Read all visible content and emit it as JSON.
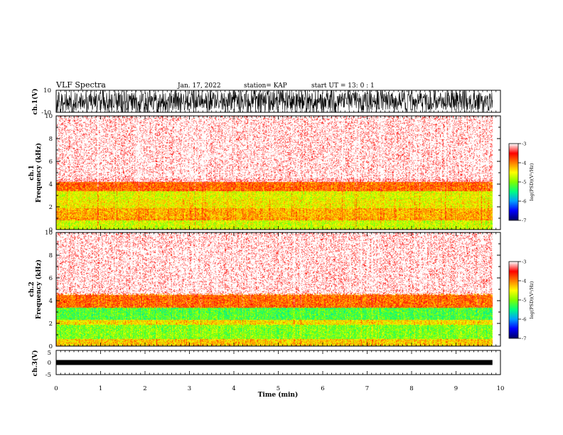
{
  "header": {
    "title": "VLF Spectra",
    "date": "Jan. 17, 2022",
    "station": "station= KAP",
    "start": "start UT =  13: 0 : 1"
  },
  "chart_data": [
    {
      "type": "line",
      "name": "waveform-ch1",
      "ylabel": "ch.1(V)",
      "ylim": [
        -10,
        10
      ],
      "yticks": [
        "10",
        "-10"
      ],
      "xlim": [
        0,
        10
      ],
      "description_of_signal": "dense noise"
    },
    {
      "type": "heatmap",
      "name": "spectrogram-ch1",
      "ylabel": "ch.1\nFrequency (kHz)",
      "ylabel_line1": "ch.1",
      "ylabel_line2": "Frequency (kHz)",
      "ylim": [
        0,
        10
      ],
      "yticks": [
        "0",
        "2",
        "4",
        "6",
        "8",
        "10"
      ],
      "xlim": [
        0,
        10
      ],
      "data_end_min": 9.82,
      "colorbar": {
        "label": "log(PSD)(V²/Hz)",
        "ticks": [
          "-3",
          "-4",
          "-5",
          "-6",
          "-7"
        ],
        "range": [
          -7,
          -3
        ]
      },
      "bands": [
        {
          "f_lo": 0,
          "f_hi": 0.8,
          "level": -4.7
        },
        {
          "f_lo": 0.8,
          "f_hi": 1.0,
          "level": -4.1
        },
        {
          "f_lo": 1.0,
          "f_hi": 1.9,
          "level": -4.2
        },
        {
          "f_lo": 1.9,
          "f_hi": 2.6,
          "level": -4.5
        },
        {
          "f_lo": 2.6,
          "f_hi": 3.4,
          "level": -4.6
        },
        {
          "f_lo": 3.4,
          "f_hi": 4.2,
          "level": -3.9
        },
        {
          "f_lo": 4.2,
          "f_hi": 10,
          "level": -3.1
        }
      ]
    },
    {
      "type": "heatmap",
      "name": "spectrogram-ch2",
      "ylabel_line1": "ch.2",
      "ylabel_line2": "Frequency (kHz)",
      "ylim": [
        0,
        10
      ],
      "yticks": [
        "0",
        "2",
        "4",
        "6",
        "8",
        "10"
      ],
      "xlim": [
        0,
        10
      ],
      "data_end_min": 9.82,
      "colorbar": {
        "label": "log(PSD)(V²/Hz)",
        "ticks": [
          "-3",
          "-4",
          "-5",
          "-6",
          "-7"
        ],
        "range": [
          -7,
          -3
        ]
      },
      "bands": [
        {
          "f_lo": 0,
          "f_hi": 0.6,
          "level": -4.3
        },
        {
          "f_lo": 0.6,
          "f_hi": 1.9,
          "level": -5.0
        },
        {
          "f_lo": 1.9,
          "f_hi": 2.3,
          "level": -4.4
        },
        {
          "f_lo": 2.3,
          "f_hi": 3.4,
          "level": -5.2
        },
        {
          "f_lo": 3.4,
          "f_hi": 4.6,
          "level": -3.9
        },
        {
          "f_lo": 4.6,
          "f_hi": 10,
          "level": -3.1
        }
      ]
    },
    {
      "type": "line",
      "name": "waveform-ch3",
      "ylabel": "ch.3(V)",
      "ylim": [
        -5,
        5
      ],
      "yticks": [
        "5",
        "0",
        "-5"
      ],
      "xlim": [
        0,
        10
      ],
      "xlabel": "Time (min)",
      "xticks": [
        "0",
        "1",
        "2",
        "3",
        "4",
        "5",
        "6",
        "7",
        "8",
        "9",
        "10"
      ],
      "level_V": 0.0
    }
  ],
  "colors": {
    "colormap": [
      "#000066",
      "#0000ff",
      "#00a0ff",
      "#00ff80",
      "#7fff00",
      "#ffff00",
      "#ff8000",
      "#ff0000",
      "#ffffff"
    ],
    "axis": "#000000",
    "trace": "#000000"
  }
}
